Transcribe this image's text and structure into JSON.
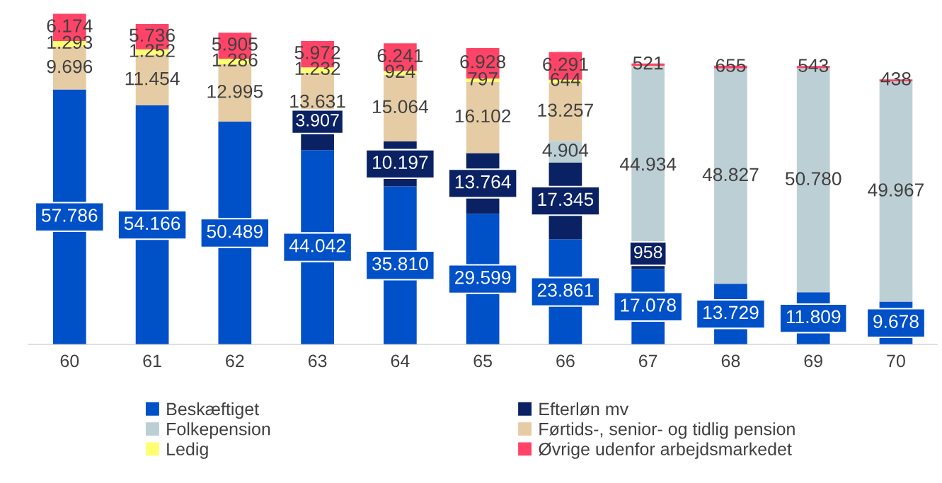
{
  "chart_data": {
    "type": "bar",
    "stacked": true,
    "data_labels": true,
    "legend": "bottom",
    "grid": false,
    "categories": [
      "60",
      "61",
      "62",
      "63",
      "64",
      "65",
      "66",
      "67",
      "68",
      "69",
      "70"
    ],
    "series": [
      {
        "name": "Beskæftiget",
        "color": "#0050c8",
        "values": [
          57786,
          54166,
          50489,
          44042,
          35810,
          29599,
          23861,
          17078,
          13729,
          11809,
          9678
        ],
        "value_labels": [
          "57.786",
          "54.166",
          "50.489",
          "44.042",
          "35.810",
          "29.599",
          "23.861",
          "17.078",
          "13.729",
          "11.809",
          "9.678"
        ]
      },
      {
        "name": "Efterløn mv",
        "color": "#0a2263",
        "values": [
          null,
          null,
          null,
          3907,
          10197,
          13764,
          17345,
          958,
          null,
          null,
          null
        ],
        "value_labels": [
          null,
          null,
          null,
          "3.907",
          "10.197",
          "13.764",
          "17.345",
          "958",
          null,
          null,
          null
        ]
      },
      {
        "name": "Folkepension",
        "color": "#bccfd4",
        "values": [
          null,
          null,
          null,
          null,
          null,
          null,
          4904,
          44934,
          48827,
          50780,
          49967
        ],
        "value_labels": [
          null,
          null,
          null,
          null,
          null,
          null,
          "4.904",
          "44.934",
          "48.827",
          "50.780",
          "49.967"
        ]
      },
      {
        "name": "Førtids-, senior- og tidlig pension",
        "color": "#e6cca4",
        "values": [
          9696,
          11454,
          12995,
          13631,
          15064,
          16102,
          13257,
          200,
          null,
          null,
          null
        ],
        "value_labels": [
          "9.696",
          "11.454",
          "12.995",
          "13.631",
          "15.064",
          "16.102",
          "13.257",
          null,
          null,
          null,
          null
        ]
      },
      {
        "name": "Ledig",
        "color": "#ffff70",
        "values": [
          1293,
          1252,
          1286,
          1232,
          924,
          797,
          644,
          null,
          null,
          null,
          null
        ],
        "value_labels": [
          "1.293",
          "1.252",
          "1.286",
          "1.232",
          "924",
          "797",
          "644",
          null,
          null,
          null,
          null
        ]
      },
      {
        "name": "Øvrige udenfor arbejdsmarkedet",
        "color": "#ff4468",
        "values": [
          6174,
          5736,
          5905,
          5972,
          6241,
          6928,
          6291,
          521,
          655,
          543,
          438
        ],
        "value_labels": [
          "6.174",
          "5.736",
          "5.905",
          "5.972",
          "6.241",
          "6.928",
          "6.291",
          "521",
          "655",
          "543",
          "438"
        ]
      }
    ]
  }
}
